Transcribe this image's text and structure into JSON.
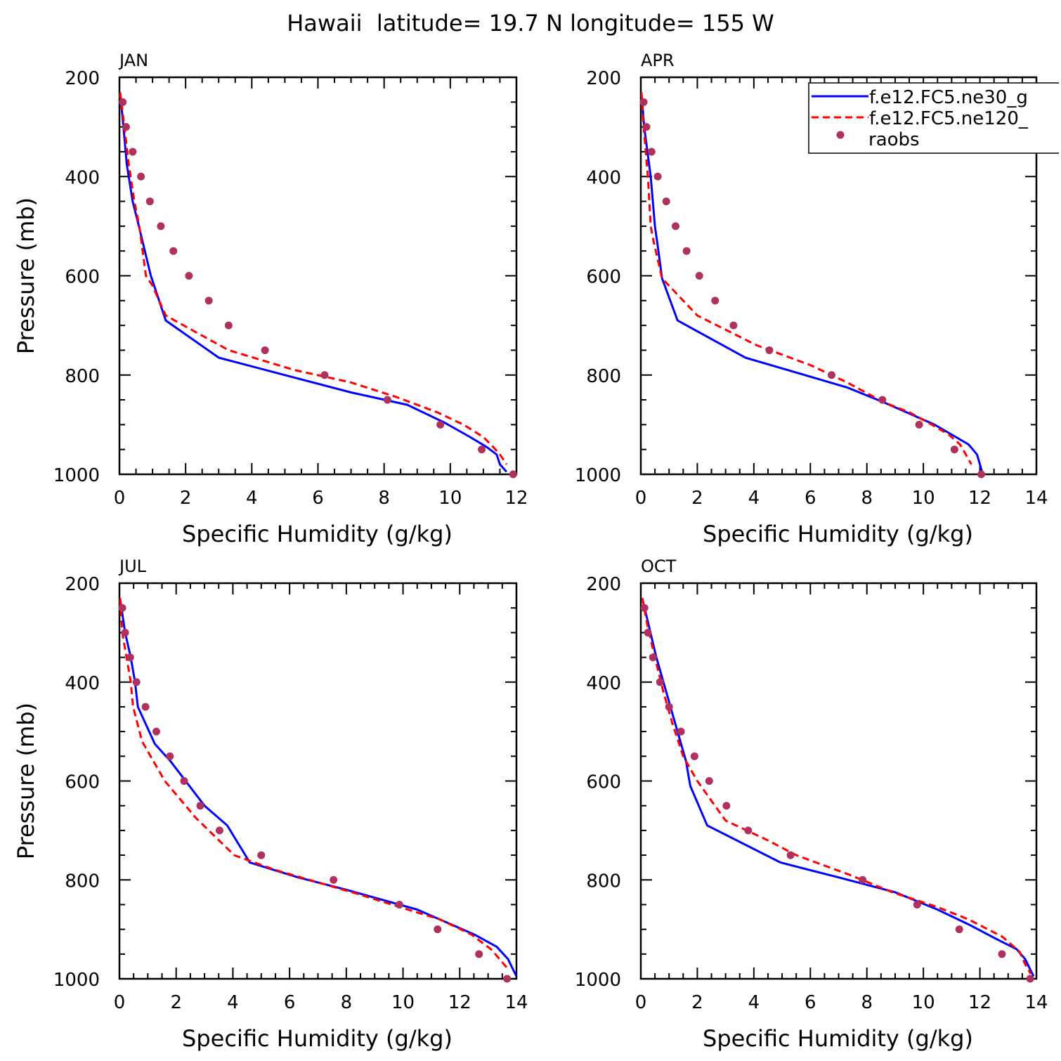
{
  "title": "Hawaii  latitude= 19.7 N longitude= 155 W",
  "colors": {
    "model1": "#0000ff",
    "model2": "#ff0000",
    "obs": "#b03060"
  },
  "legend": {
    "placement": "top-right of APR panel",
    "entries": [
      {
        "label": "f.e12.FC5.ne30_g",
        "style": "solid",
        "color": "#0000ff"
      },
      {
        "label": "f.e12.FC5.ne120_",
        "style": "dashed",
        "color": "#ff0000"
      },
      {
        "label": "raobs",
        "style": "dot",
        "color": "#b03060"
      }
    ]
  },
  "chart_data": [
    {
      "type": "line",
      "panel": "JAN",
      "xlabel": "Specific Humidity (g/kg)",
      "ylabel": "Pressure (mb)",
      "xlim": [
        0,
        12
      ],
      "ylim": [
        1000,
        200
      ],
      "y_reversed": true,
      "xticks": [
        0,
        2,
        4,
        6,
        8,
        10,
        12
      ],
      "yticks": [
        200,
        400,
        600,
        800,
        1000
      ],
      "series": [
        {
          "name": "f.e12.FC5.ne30_g",
          "style": "solid",
          "color": "#0000ff",
          "points": [
            [
              0.02,
              230
            ],
            [
              0.12,
              300
            ],
            [
              0.22,
              375
            ],
            [
              0.4,
              450
            ],
            [
              0.55,
              490
            ],
            [
              0.95,
              600
            ],
            [
              1.0,
              610
            ],
            [
              1.4,
              690
            ],
            [
              3.0,
              765
            ],
            [
              5.0,
              800
            ],
            [
              7.0,
              835
            ],
            [
              8.7,
              860
            ],
            [
              9.8,
              895
            ],
            [
              10.6,
              925
            ],
            [
              11.1,
              945
            ],
            [
              11.4,
              960
            ],
            [
              11.5,
              980
            ],
            [
              11.7,
              995
            ]
          ]
        },
        {
          "name": "f.e12.FC5.ne120_",
          "style": "dashed",
          "color": "#ff0000",
          "points": [
            [
              0.02,
              230
            ],
            [
              0.15,
              300
            ],
            [
              0.28,
              375
            ],
            [
              0.45,
              450
            ],
            [
              0.6,
              500
            ],
            [
              0.8,
              600
            ],
            [
              1.0,
              620
            ],
            [
              1.4,
              680
            ],
            [
              3.3,
              750
            ],
            [
              5.3,
              790
            ],
            [
              7.0,
              815
            ],
            [
              8.4,
              845
            ],
            [
              9.6,
              875
            ],
            [
              10.4,
              900
            ],
            [
              11.0,
              925
            ],
            [
              11.3,
              945
            ],
            [
              11.5,
              960
            ],
            [
              11.7,
              980
            ]
          ]
        },
        {
          "name": "raobs",
          "style": "dot",
          "color": "#b03060",
          "points": [
            [
              0.1,
              250
            ],
            [
              0.2,
              300
            ],
            [
              0.4,
              350
            ],
            [
              0.65,
              400
            ],
            [
              0.92,
              450
            ],
            [
              1.25,
              500
            ],
            [
              1.63,
              550
            ],
            [
              2.1,
              600
            ],
            [
              2.7,
              650
            ],
            [
              3.3,
              700
            ],
            [
              4.4,
              750
            ],
            [
              6.2,
              800
            ],
            [
              8.1,
              850
            ],
            [
              9.7,
              900
            ],
            [
              10.95,
              950
            ],
            [
              11.9,
              1000
            ]
          ]
        }
      ]
    },
    {
      "type": "line",
      "panel": "APR",
      "xlabel": "Specific Humidity (g/kg)",
      "ylabel": "",
      "xlim": [
        0,
        14
      ],
      "ylim": [
        1000,
        200
      ],
      "y_reversed": true,
      "xticks": [
        0,
        2,
        4,
        6,
        8,
        10,
        12,
        14
      ],
      "yticks": [
        200,
        400,
        600,
        800,
        1000
      ],
      "series": [
        {
          "name": "f.e12.FC5.ne30_g",
          "style": "solid",
          "color": "#0000ff",
          "points": [
            [
              0.02,
              230
            ],
            [
              0.12,
              300
            ],
            [
              0.35,
              400
            ],
            [
              0.5,
              500
            ],
            [
              0.6,
              540
            ],
            [
              0.75,
              605
            ],
            [
              1.3,
              690
            ],
            [
              3.7,
              765
            ],
            [
              5.5,
              795
            ],
            [
              7.3,
              825
            ],
            [
              8.6,
              855
            ],
            [
              9.6,
              880
            ],
            [
              10.4,
              900
            ],
            [
              11.0,
              920
            ],
            [
              11.6,
              940
            ],
            [
              11.9,
              960
            ],
            [
              12.0,
              980
            ],
            [
              12.1,
              1000
            ]
          ]
        },
        {
          "name": "f.e12.FC5.ne120_",
          "style": "dashed",
          "color": "#ff0000",
          "points": [
            [
              0.02,
              230
            ],
            [
              0.1,
              300
            ],
            [
              0.25,
              400
            ],
            [
              0.35,
              500
            ],
            [
              0.45,
              530
            ],
            [
              0.75,
              605
            ],
            [
              2.0,
              680
            ],
            [
              4.1,
              740
            ],
            [
              6.0,
              780
            ],
            [
              7.3,
              815
            ],
            [
              8.6,
              855
            ],
            [
              9.5,
              875
            ],
            [
              10.3,
              900
            ],
            [
              10.9,
              920
            ],
            [
              11.3,
              940
            ],
            [
              11.5,
              960
            ],
            [
              11.7,
              980
            ]
          ]
        },
        {
          "name": "raobs",
          "style": "dot",
          "color": "#b03060",
          "points": [
            [
              0.1,
              250
            ],
            [
              0.2,
              300
            ],
            [
              0.38,
              350
            ],
            [
              0.6,
              400
            ],
            [
              0.9,
              450
            ],
            [
              1.23,
              500
            ],
            [
              1.62,
              550
            ],
            [
              2.07,
              600
            ],
            [
              2.63,
              650
            ],
            [
              3.28,
              700
            ],
            [
              4.55,
              750
            ],
            [
              6.75,
              800
            ],
            [
              8.55,
              850
            ],
            [
              9.85,
              900
            ],
            [
              11.1,
              950
            ],
            [
              12.05,
              1000
            ]
          ]
        }
      ]
    },
    {
      "type": "line",
      "panel": "JUL",
      "xlabel": "Specific Humidity (g/kg)",
      "ylabel": "Pressure (mb)",
      "xlim": [
        0,
        14
      ],
      "ylim": [
        1000,
        200
      ],
      "y_reversed": true,
      "xticks": [
        0,
        2,
        4,
        6,
        8,
        10,
        12,
        14
      ],
      "yticks": [
        200,
        400,
        600,
        800,
        1000
      ],
      "series": [
        {
          "name": "f.e12.FC5.ne30_g",
          "style": "solid",
          "color": "#0000ff",
          "points": [
            [
              0.02,
              230
            ],
            [
              0.2,
              300
            ],
            [
              0.4,
              350
            ],
            [
              0.55,
              400
            ],
            [
              0.65,
              450
            ],
            [
              1.25,
              525
            ],
            [
              1.8,
              560
            ],
            [
              3.0,
              650
            ],
            [
              3.8,
              690
            ],
            [
              4.6,
              765
            ],
            [
              6.3,
              795
            ],
            [
              8.0,
              820
            ],
            [
              10.5,
              860
            ],
            [
              11.5,
              885
            ],
            [
              12.5,
              910
            ],
            [
              13.3,
              935
            ],
            [
              13.7,
              960
            ],
            [
              14.0,
              995
            ]
          ]
        },
        {
          "name": "f.e12.FC5.ne120_",
          "style": "dashed",
          "color": "#ff0000",
          "points": [
            [
              0.02,
              230
            ],
            [
              0.1,
              300
            ],
            [
              0.25,
              350
            ],
            [
              0.4,
              400
            ],
            [
              0.48,
              450
            ],
            [
              0.8,
              520
            ],
            [
              1.6,
              600
            ],
            [
              2.7,
              675
            ],
            [
              4.05,
              750
            ],
            [
              5.5,
              780
            ],
            [
              7.3,
              810
            ],
            [
              8.5,
              830
            ],
            [
              9.9,
              855
            ],
            [
              11.3,
              880
            ],
            [
              12.4,
              910
            ],
            [
              13.1,
              940
            ],
            [
              13.4,
              960
            ],
            [
              13.7,
              980
            ]
          ]
        },
        {
          "name": "raobs",
          "style": "dot",
          "color": "#b03060",
          "points": [
            [
              0.1,
              250
            ],
            [
              0.2,
              300
            ],
            [
              0.38,
              350
            ],
            [
              0.6,
              400
            ],
            [
              0.92,
              450
            ],
            [
              1.3,
              500
            ],
            [
              1.78,
              550
            ],
            [
              2.28,
              600
            ],
            [
              2.85,
              650
            ],
            [
              3.53,
              700
            ],
            [
              5.0,
              750
            ],
            [
              7.55,
              800
            ],
            [
              9.87,
              850
            ],
            [
              11.22,
              900
            ],
            [
              12.68,
              950
            ],
            [
              13.67,
              1000
            ]
          ]
        }
      ]
    },
    {
      "type": "line",
      "panel": "OCT",
      "xlabel": "Specific Humidity (g/kg)",
      "ylabel": "",
      "xlim": [
        0,
        14
      ],
      "ylim": [
        1000,
        200
      ],
      "y_reversed": true,
      "xticks": [
        0,
        2,
        4,
        6,
        8,
        10,
        12,
        14
      ],
      "yticks": [
        200,
        400,
        600,
        800,
        1000
      ],
      "series": [
        {
          "name": "f.e12.FC5.ne30_g",
          "style": "solid",
          "color": "#0000ff",
          "points": [
            [
              0.05,
              230
            ],
            [
              0.3,
              290
            ],
            [
              0.55,
              350
            ],
            [
              0.9,
              420
            ],
            [
              1.1,
              460
            ],
            [
              1.4,
              520
            ],
            [
              1.6,
              560
            ],
            [
              1.75,
              610
            ],
            [
              2.35,
              690
            ],
            [
              4.95,
              765
            ],
            [
              7.0,
              795
            ],
            [
              9.0,
              825
            ],
            [
              10.5,
              860
            ],
            [
              11.6,
              890
            ],
            [
              12.6,
              920
            ],
            [
              13.3,
              940
            ],
            [
              13.6,
              960
            ],
            [
              13.9,
              995
            ]
          ]
        },
        {
          "name": "f.e12.FC5.ne120_",
          "style": "dashed",
          "color": "#ff0000",
          "points": [
            [
              0.05,
              230
            ],
            [
              0.25,
              290
            ],
            [
              0.5,
              350
            ],
            [
              0.8,
              420
            ],
            [
              1.1,
              480
            ],
            [
              1.5,
              550
            ],
            [
              2.0,
              600
            ],
            [
              3.0,
              680
            ],
            [
              4.5,
              720
            ],
            [
              5.5,
              750
            ],
            [
              7.4,
              790
            ],
            [
              8.9,
              825
            ],
            [
              10.5,
              855
            ],
            [
              11.6,
              880
            ],
            [
              12.8,
              915
            ],
            [
              13.4,
              945
            ],
            [
              13.6,
              970
            ],
            [
              13.8,
              990
            ]
          ]
        },
        {
          "name": "raobs",
          "style": "dot",
          "color": "#b03060",
          "points": [
            [
              0.13,
              250
            ],
            [
              0.25,
              300
            ],
            [
              0.43,
              350
            ],
            [
              0.68,
              400
            ],
            [
              1.0,
              450
            ],
            [
              1.42,
              500
            ],
            [
              1.9,
              550
            ],
            [
              2.42,
              600
            ],
            [
              3.03,
              650
            ],
            [
              3.8,
              700
            ],
            [
              5.3,
              750
            ],
            [
              7.85,
              800
            ],
            [
              9.78,
              850
            ],
            [
              11.27,
              900
            ],
            [
              12.78,
              950
            ],
            [
              13.78,
              1000
            ]
          ]
        }
      ]
    }
  ]
}
